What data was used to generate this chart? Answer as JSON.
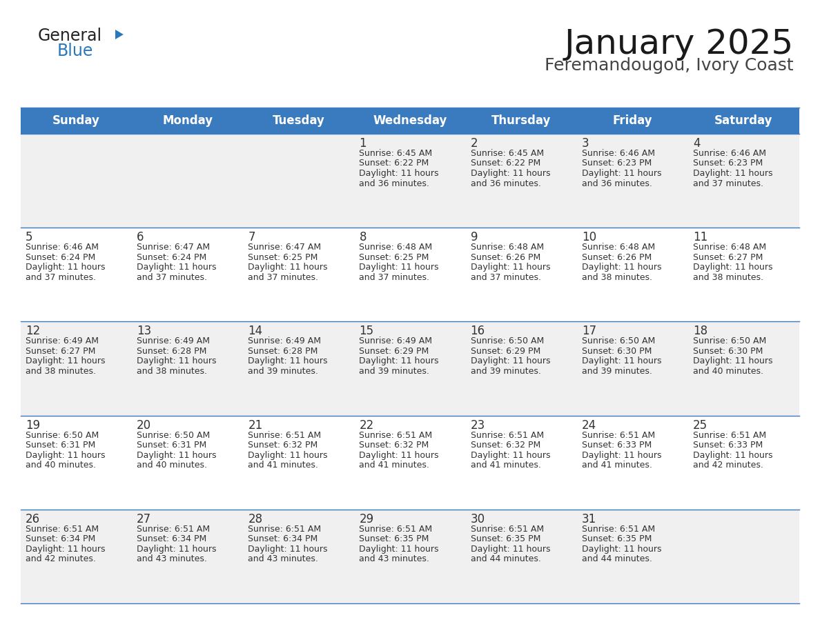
{
  "title": "January 2025",
  "subtitle": "Feremandougou, Ivory Coast",
  "header_bg": "#3a7abf",
  "header_text_color": "#ffffff",
  "cell_bg_odd": "#f0f0f0",
  "cell_bg_even": "#ffffff",
  "day_number_color": "#333333",
  "cell_text_color": "#333333",
  "grid_line_color": "#3a7abf",
  "logo_general_color": "#222222",
  "logo_blue_color": "#2878be",
  "logo_triangle_color": "#2878be",
  "weekdays": [
    "Sunday",
    "Monday",
    "Tuesday",
    "Wednesday",
    "Thursday",
    "Friday",
    "Saturday"
  ],
  "title_fontsize": 36,
  "subtitle_fontsize": 18,
  "header_fontsize": 12,
  "day_num_fontsize": 12,
  "cell_fontsize": 9,
  "weeks": [
    [
      {
        "day": "",
        "sunrise": "",
        "sunset": "",
        "daylight_min": ""
      },
      {
        "day": "",
        "sunrise": "",
        "sunset": "",
        "daylight_min": ""
      },
      {
        "day": "",
        "sunrise": "",
        "sunset": "",
        "daylight_min": ""
      },
      {
        "day": "1",
        "sunrise": "6:45 AM",
        "sunset": "6:22 PM",
        "daylight_min": "36"
      },
      {
        "day": "2",
        "sunrise": "6:45 AM",
        "sunset": "6:22 PM",
        "daylight_min": "36"
      },
      {
        "day": "3",
        "sunrise": "6:46 AM",
        "sunset": "6:23 PM",
        "daylight_min": "36"
      },
      {
        "day": "4",
        "sunrise": "6:46 AM",
        "sunset": "6:23 PM",
        "daylight_min": "37"
      }
    ],
    [
      {
        "day": "5",
        "sunrise": "6:46 AM",
        "sunset": "6:24 PM",
        "daylight_min": "37"
      },
      {
        "day": "6",
        "sunrise": "6:47 AM",
        "sunset": "6:24 PM",
        "daylight_min": "37"
      },
      {
        "day": "7",
        "sunrise": "6:47 AM",
        "sunset": "6:25 PM",
        "daylight_min": "37"
      },
      {
        "day": "8",
        "sunrise": "6:48 AM",
        "sunset": "6:25 PM",
        "daylight_min": "37"
      },
      {
        "day": "9",
        "sunrise": "6:48 AM",
        "sunset": "6:26 PM",
        "daylight_min": "37"
      },
      {
        "day": "10",
        "sunrise": "6:48 AM",
        "sunset": "6:26 PM",
        "daylight_min": "38"
      },
      {
        "day": "11",
        "sunrise": "6:48 AM",
        "sunset": "6:27 PM",
        "daylight_min": "38"
      }
    ],
    [
      {
        "day": "12",
        "sunrise": "6:49 AM",
        "sunset": "6:27 PM",
        "daylight_min": "38"
      },
      {
        "day": "13",
        "sunrise": "6:49 AM",
        "sunset": "6:28 PM",
        "daylight_min": "38"
      },
      {
        "day": "14",
        "sunrise": "6:49 AM",
        "sunset": "6:28 PM",
        "daylight_min": "39"
      },
      {
        "day": "15",
        "sunrise": "6:49 AM",
        "sunset": "6:29 PM",
        "daylight_min": "39"
      },
      {
        "day": "16",
        "sunrise": "6:50 AM",
        "sunset": "6:29 PM",
        "daylight_min": "39"
      },
      {
        "day": "17",
        "sunrise": "6:50 AM",
        "sunset": "6:30 PM",
        "daylight_min": "39"
      },
      {
        "day": "18",
        "sunrise": "6:50 AM",
        "sunset": "6:30 PM",
        "daylight_min": "40"
      }
    ],
    [
      {
        "day": "19",
        "sunrise": "6:50 AM",
        "sunset": "6:31 PM",
        "daylight_min": "40"
      },
      {
        "day": "20",
        "sunrise": "6:50 AM",
        "sunset": "6:31 PM",
        "daylight_min": "40"
      },
      {
        "day": "21",
        "sunrise": "6:51 AM",
        "sunset": "6:32 PM",
        "daylight_min": "41"
      },
      {
        "day": "22",
        "sunrise": "6:51 AM",
        "sunset": "6:32 PM",
        "daylight_min": "41"
      },
      {
        "day": "23",
        "sunrise": "6:51 AM",
        "sunset": "6:32 PM",
        "daylight_min": "41"
      },
      {
        "day": "24",
        "sunrise": "6:51 AM",
        "sunset": "6:33 PM",
        "daylight_min": "41"
      },
      {
        "day": "25",
        "sunrise": "6:51 AM",
        "sunset": "6:33 PM",
        "daylight_min": "42"
      }
    ],
    [
      {
        "day": "26",
        "sunrise": "6:51 AM",
        "sunset": "6:34 PM",
        "daylight_min": "42"
      },
      {
        "day": "27",
        "sunrise": "6:51 AM",
        "sunset": "6:34 PM",
        "daylight_min": "43"
      },
      {
        "day": "28",
        "sunrise": "6:51 AM",
        "sunset": "6:34 PM",
        "daylight_min": "43"
      },
      {
        "day": "29",
        "sunrise": "6:51 AM",
        "sunset": "6:35 PM",
        "daylight_min": "43"
      },
      {
        "day": "30",
        "sunrise": "6:51 AM",
        "sunset": "6:35 PM",
        "daylight_min": "44"
      },
      {
        "day": "31",
        "sunrise": "6:51 AM",
        "sunset": "6:35 PM",
        "daylight_min": "44"
      },
      {
        "day": "",
        "sunrise": "",
        "sunset": "",
        "daylight_min": ""
      }
    ]
  ]
}
